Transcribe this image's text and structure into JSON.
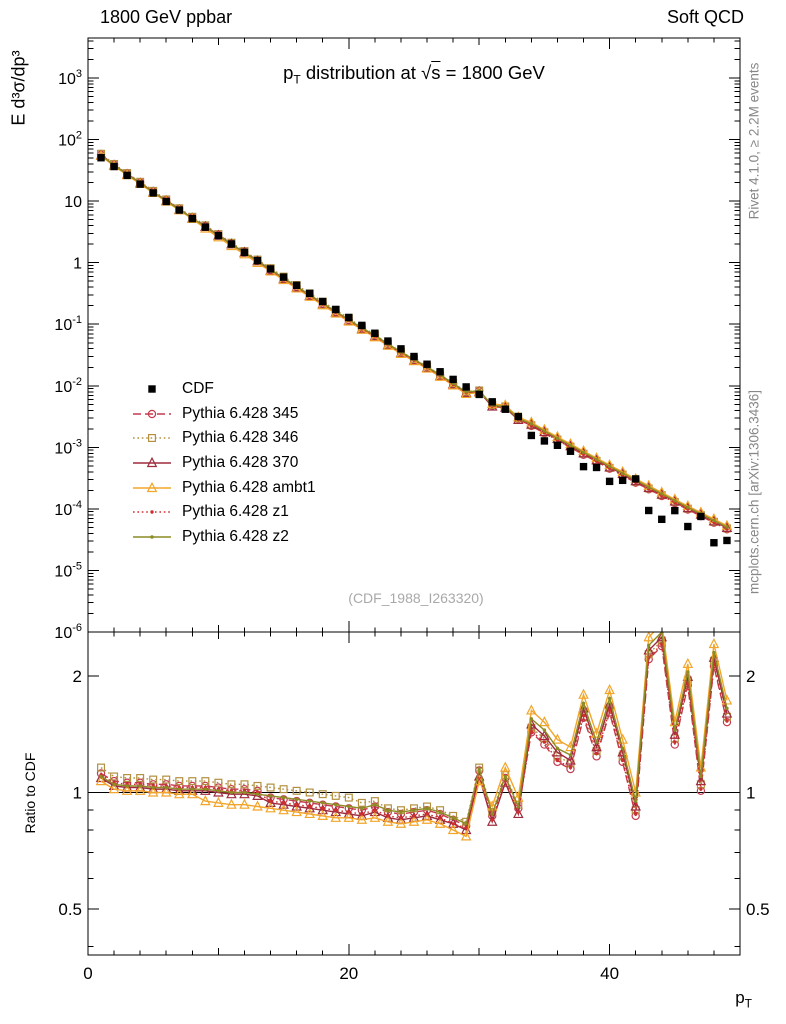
{
  "header": {
    "left": "1800 GeV ppbar",
    "right": "Soft QCD"
  },
  "title": {
    "p": "p",
    "sub": "T",
    "rest": " distribution at ",
    "sqrt": "√",
    "s": "s",
    "eq": " = 1800 GeV"
  },
  "axis_labels": {
    "y_main": "E  d³σ/dp³",
    "y_ratio": "Ratio to CDF",
    "x_base": "p",
    "x_sub": "T"
  },
  "notes": {
    "rivet": "Rivet 4.1.0, ≥ 2.2M events",
    "mcplots": "mcplots.cern.ch [arXiv:1306.3436]",
    "watermark": "(CDF_1988_I263320)"
  },
  "chart_data": {
    "type": "line",
    "title": "pT distribution at √s = 1800 GeV",
    "xlabel": "pT",
    "ylabel": "E d³σ/dp³",
    "ratio_ylabel": "Ratio to CDF",
    "grid": false,
    "legend_position": "inside-left",
    "xlim": [
      0,
      50
    ],
    "ylim": [
      1e-06,
      4470
    ],
    "ratio_ylim": [
      0.38,
      2.6
    ],
    "x": [
      1,
      2,
      3,
      4,
      5,
      6,
      7,
      8,
      9,
      10,
      11,
      12,
      13,
      14,
      15,
      16,
      17,
      18,
      19,
      20,
      21,
      22,
      23,
      24,
      25,
      26,
      27,
      28,
      29,
      30,
      31,
      32,
      33,
      34,
      35,
      36,
      37,
      38,
      39,
      40,
      41,
      42,
      43,
      44,
      45,
      46,
      47,
      48,
      49
    ],
    "reference": {
      "name": "CDF",
      "color": "#000000",
      "marker": "square-filled",
      "values": [
        50.7,
        36.5,
        26.2,
        18.9,
        13.6,
        9.87,
        7.16,
        5.2,
        3.78,
        2.75,
        2.01,
        1.47,
        1.08,
        0.792,
        0.582,
        0.429,
        0.317,
        0.234,
        0.174,
        0.129,
        0.0958,
        0.0714,
        0.0533,
        0.0398,
        0.0299,
        0.0224,
        0.0169,
        0.0127,
        0.00958,
        0.00724,
        0.00549,
        0.00416,
        0.00317,
        0.00156,
        0.00127,
        0.00108,
        0.000864,
        0.000486,
        0.000471,
        0.00028,
        0.000291,
        0.000307,
        9.42e-05,
        6.77e-05,
        9.38e-05,
        5.17e-05,
        7.54e-05,
        2.82e-05,
        3.07e-05
      ]
    },
    "series": [
      {
        "name": "Pythia 6.428 345",
        "color": "#c43b4e",
        "line": "dashed",
        "marker": "circle-open",
        "ratio": [
          1.12,
          1.07,
          1.06,
          1.06,
          1.05,
          1.05,
          1.04,
          1.04,
          1.04,
          1.03,
          1.02,
          1.02,
          1.01,
          0.97,
          0.96,
          0.95,
          0.94,
          0.93,
          0.92,
          0.91,
          0.9,
          0.92,
          0.89,
          0.88,
          0.89,
          0.9,
          0.88,
          0.85,
          0.82,
          1.14,
          0.87,
          1.09,
          0.91,
          1.43,
          1.33,
          1.2,
          1.15,
          1.56,
          1.24,
          1.61,
          1.2,
          0.87,
          2.21,
          2.39,
          1.33,
          1.89,
          1.01,
          2.12,
          1.52
        ]
      },
      {
        "name": "Pythia 6.428 346",
        "color": "#b3903f",
        "line": "dotted",
        "marker": "square-open",
        "ratio": [
          1.16,
          1.1,
          1.09,
          1.09,
          1.08,
          1.08,
          1.07,
          1.07,
          1.07,
          1.06,
          1.05,
          1.05,
          1.04,
          1.03,
          1.02,
          1.01,
          1.0,
          0.99,
          0.98,
          0.97,
          0.94,
          0.95,
          0.91,
          0.9,
          0.91,
          0.92,
          0.9,
          0.87,
          0.84,
          1.16,
          0.89,
          1.11,
          0.93,
          1.47,
          1.38,
          1.24,
          1.19,
          1.62,
          1.28,
          1.66,
          1.24,
          0.9,
          2.28,
          2.47,
          1.38,
          1.95,
          1.05,
          2.19,
          1.57
        ]
      },
      {
        "name": "Pythia 6.428 370",
        "color": "#9e2b3d",
        "line": "solid",
        "marker": "triangle-open",
        "ratio": [
          1.09,
          1.04,
          1.03,
          1.03,
          1.02,
          1.02,
          1.01,
          1.01,
          1.01,
          1.0,
          0.99,
          0.99,
          0.98,
          0.94,
          0.93,
          0.92,
          0.91,
          0.9,
          0.89,
          0.88,
          0.87,
          0.89,
          0.86,
          0.85,
          0.86,
          0.87,
          0.85,
          0.83,
          0.8,
          1.1,
          0.84,
          1.06,
          0.88,
          1.5,
          1.4,
          1.27,
          1.21,
          1.65,
          1.31,
          1.69,
          1.27,
          0.92,
          2.33,
          2.52,
          1.41,
          1.99,
          1.07,
          2.23,
          1.6
        ]
      },
      {
        "name": "Pythia 6.428 ambt1",
        "color": "#f2a52b",
        "line": "solid",
        "marker": "triangle-open",
        "ratio": [
          1.07,
          1.02,
          1.01,
          1.01,
          1.0,
          1.0,
          0.99,
          0.99,
          0.95,
          0.94,
          0.93,
          0.93,
          0.92,
          0.91,
          0.9,
          0.89,
          0.88,
          0.87,
          0.86,
          0.86,
          0.85,
          0.86,
          0.84,
          0.83,
          0.84,
          0.85,
          0.83,
          0.8,
          0.77,
          1.07,
          0.92,
          1.16,
          0.97,
          1.63,
          1.52,
          1.37,
          1.31,
          1.79,
          1.42,
          1.84,
          1.37,
          1.0,
          2.52,
          2.73,
          1.52,
          2.15,
          1.16,
          2.42,
          1.73
        ]
      },
      {
        "name": "Pythia 6.428 z1",
        "color": "#cf2e2e",
        "line": "dotted",
        "marker": "dot",
        "ratio": [
          1.11,
          1.06,
          1.05,
          1.05,
          1.04,
          1.04,
          1.03,
          1.03,
          1.03,
          1.02,
          1.01,
          1.01,
          1.0,
          0.95,
          0.94,
          0.93,
          0.92,
          0.91,
          0.9,
          0.89,
          0.88,
          0.9,
          0.87,
          0.86,
          0.87,
          0.88,
          0.86,
          0.83,
          0.81,
          1.12,
          0.85,
          1.07,
          0.89,
          1.44,
          1.35,
          1.21,
          1.16,
          1.58,
          1.26,
          1.63,
          1.21,
          0.88,
          2.23,
          2.42,
          1.35,
          1.91,
          1.02,
          2.14,
          1.53
        ]
      },
      {
        "name": "Pythia 6.428 z2",
        "color": "#8c8c25",
        "line": "solid",
        "marker": "dot",
        "ratio": [
          1.1,
          1.05,
          1.04,
          1.04,
          1.03,
          1.03,
          1.02,
          1.02,
          1.02,
          1.01,
          1.0,
          1.0,
          0.99,
          0.98,
          0.97,
          0.96,
          0.95,
          0.94,
          0.93,
          0.92,
          0.91,
          0.93,
          0.9,
          0.89,
          0.9,
          0.91,
          0.89,
          0.86,
          0.83,
          1.15,
          0.88,
          1.1,
          0.92,
          1.55,
          1.45,
          1.3,
          1.25,
          1.7,
          1.35,
          1.75,
          1.3,
          0.95,
          2.4,
          2.6,
          1.45,
          2.05,
          1.1,
          2.3,
          1.65
        ]
      }
    ],
    "main_yticks": [
      {
        "v": 1e-06,
        "b": "10",
        "e": "-6"
      },
      {
        "v": 1e-05,
        "b": "10",
        "e": "-5"
      },
      {
        "v": 0.0001,
        "b": "10",
        "e": "-4"
      },
      {
        "v": 0.001,
        "b": "10",
        "e": "-3"
      },
      {
        "v": 0.01,
        "b": "10",
        "e": "-2"
      },
      {
        "v": 0.1,
        "b": "10",
        "e": "-1"
      },
      {
        "v": 1,
        "b": "1"
      },
      {
        "v": 10,
        "b": "10"
      },
      {
        "v": 100,
        "b": "10",
        "e": "2"
      },
      {
        "v": 1000,
        "b": "10",
        "e": "3"
      }
    ],
    "ratio_yticks": [
      {
        "v": 0.5,
        "t": "0.5"
      },
      {
        "v": 1,
        "t": "1"
      },
      {
        "v": 2,
        "t": "2"
      }
    ],
    "ratio_yticks_minor": [
      0.4,
      0.6,
      0.7,
      0.8,
      0.9
    ],
    "xticks": [
      {
        "v": 0,
        "t": "0"
      },
      {
        "v": 20,
        "t": "20"
      },
      {
        "v": 40,
        "t": "40"
      }
    ]
  }
}
